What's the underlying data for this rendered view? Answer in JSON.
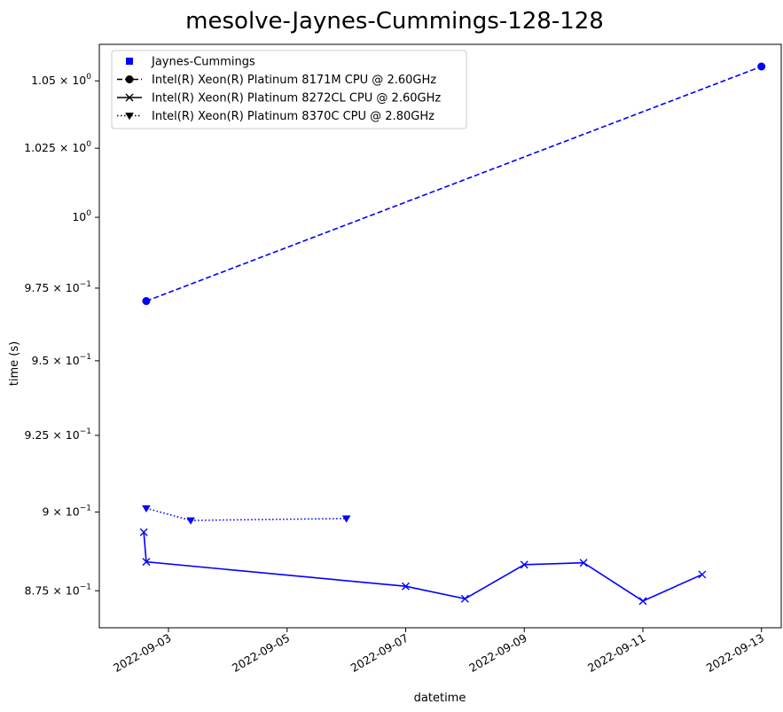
{
  "chart_data": {
    "type": "line",
    "title": "mesolve-Jaynes-Cummings-128-128",
    "xlabel": "datetime",
    "ylabel": "time (s)",
    "y_scale": "log",
    "xlim": [
      "2022-09-01T20:00",
      "2022-09-13T08:00"
    ],
    "ylim": [
      0.8635,
      1.0638
    ],
    "grid": false,
    "legend_position": "top-left",
    "color": "#0000ff",
    "x_ticks": [
      {
        "value": "2022-09-03",
        "label": "2022-09-03"
      },
      {
        "value": "2022-09-05",
        "label": "2022-09-05"
      },
      {
        "value": "2022-09-07",
        "label": "2022-09-07"
      },
      {
        "value": "2022-09-09",
        "label": "2022-09-09"
      },
      {
        "value": "2022-09-11",
        "label": "2022-09-11"
      },
      {
        "value": "2022-09-13",
        "label": "2022-09-13"
      }
    ],
    "y_ticks": [
      {
        "value": 0.875,
        "mant": "8.75",
        "exp": "−1",
        "plain": ""
      },
      {
        "value": 0.9,
        "mant": "9",
        "exp": "−1",
        "plain": ""
      },
      {
        "value": 0.925,
        "mant": "9.25",
        "exp": "−1",
        "plain": ""
      },
      {
        "value": 0.95,
        "mant": "9.5",
        "exp": "−1",
        "plain": ""
      },
      {
        "value": 0.975,
        "mant": "9.75",
        "exp": "−1",
        "plain": ""
      },
      {
        "value": 1.0,
        "mant": "",
        "exp": "",
        "plain": "10"
      },
      {
        "value": 1.025,
        "mant": "1.025",
        "exp": "0",
        "plain": ""
      },
      {
        "value": 1.05,
        "mant": "1.05",
        "exp": "0",
        "plain": ""
      }
    ],
    "legend": [
      {
        "label": "Jaynes-Cummings",
        "marker": "square",
        "dash": "none"
      },
      {
        "label": "Intel(R) Xeon(R) Platinum 8171M CPU @ 2.60GHz",
        "marker": "circle",
        "dash": "dashed"
      },
      {
        "label": "Intel(R) Xeon(R) Platinum 8272CL CPU @ 2.60GHz",
        "marker": "x",
        "dash": "solid"
      },
      {
        "label": "Intel(R) Xeon(R) Platinum 8370C CPU @ 2.80GHz",
        "marker": "triangle-down",
        "dash": "dotted"
      }
    ],
    "series": [
      {
        "name": "Intel(R) Xeon(R) Platinum 8171M CPU @ 2.60GHz",
        "marker": "circle",
        "dash": "dashed",
        "x": [
          "2022-09-02T15:00",
          "2022-09-13T00:00"
        ],
        "y": [
          0.9705,
          1.0554
        ]
      },
      {
        "name": "Intel(R) Xeon(R) Platinum 8272CL CPU @ 2.60GHz",
        "marker": "x",
        "dash": "solid",
        "x": [
          "2022-09-02T14:00",
          "2022-09-02T15:00",
          "2022-09-07T00:00",
          "2022-09-08T00:00",
          "2022-09-09T00:00",
          "2022-09-10T00:00",
          "2022-09-11T00:00",
          "2022-09-12T00:00"
        ],
        "y": [
          0.8935,
          0.8841,
          0.8764,
          0.8725,
          0.8832,
          0.8838,
          0.8718,
          0.8801
        ]
      },
      {
        "name": "Intel(R) Xeon(R) Platinum 8370C CPU @ 2.80GHz",
        "marker": "triangle-down",
        "dash": "dotted",
        "x": [
          "2022-09-02T15:00",
          "2022-09-03T09:00",
          "2022-09-06T00:00"
        ],
        "y": [
          0.9012,
          0.8973,
          0.8979
        ]
      }
    ]
  }
}
